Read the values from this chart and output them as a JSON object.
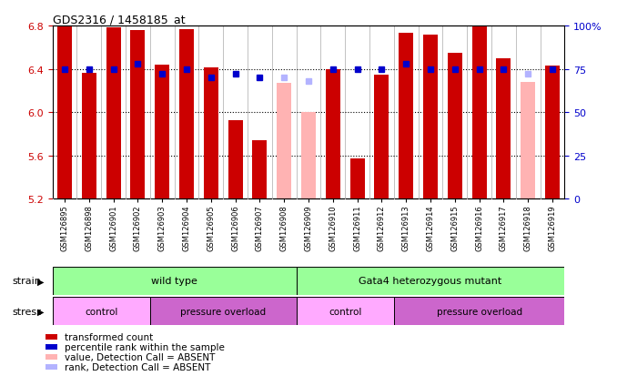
{
  "title": "GDS2316 / 1458185_at",
  "samples": [
    "GSM126895",
    "GSM126898",
    "GSM126901",
    "GSM126902",
    "GSM126903",
    "GSM126904",
    "GSM126905",
    "GSM126906",
    "GSM126907",
    "GSM126908",
    "GSM126909",
    "GSM126910",
    "GSM126911",
    "GSM126912",
    "GSM126913",
    "GSM126914",
    "GSM126915",
    "GSM126916",
    "GSM126917",
    "GSM126918",
    "GSM126919"
  ],
  "bar_values": [
    6.8,
    6.36,
    6.78,
    6.76,
    6.44,
    6.77,
    6.41,
    5.93,
    5.74,
    null,
    null,
    6.4,
    5.57,
    6.35,
    6.73,
    6.72,
    6.55,
    6.8,
    6.5,
    null,
    6.43
  ],
  "absent_values": [
    null,
    null,
    null,
    null,
    null,
    null,
    null,
    null,
    null,
    6.27,
    6.0,
    null,
    null,
    null,
    null,
    null,
    null,
    null,
    null,
    6.28,
    null
  ],
  "rank_values": [
    75,
    75,
    75,
    78,
    72,
    75,
    70,
    72,
    70,
    null,
    null,
    75,
    75,
    75,
    78,
    75,
    75,
    75,
    75,
    null,
    75
  ],
  "absent_rank_values": [
    null,
    null,
    null,
    null,
    null,
    null,
    null,
    null,
    null,
    70,
    68,
    null,
    null,
    null,
    null,
    null,
    null,
    null,
    null,
    72,
    null
  ],
  "ylim_left": [
    5.2,
    6.8
  ],
  "ylim_right": [
    0,
    100
  ],
  "yticks_left": [
    5.2,
    5.6,
    6.0,
    6.4,
    6.8
  ],
  "yticks_right": [
    0,
    25,
    50,
    75,
    100
  ],
  "bar_color": "#cc0000",
  "absent_bar_color": "#ffb3b3",
  "rank_color": "#0000cc",
  "absent_rank_color": "#b3b3ff",
  "legend_items": [
    {
      "label": "transformed count",
      "color": "#cc0000"
    },
    {
      "label": "percentile rank within the sample",
      "color": "#0000cc"
    },
    {
      "label": "value, Detection Call = ABSENT",
      "color": "#ffb3b3"
    },
    {
      "label": "rank, Detection Call = ABSENT",
      "color": "#b3b3ff"
    }
  ],
  "bg_color": "#ffffff",
  "tick_label_color_left": "#cc0000",
  "tick_label_color_right": "#0000cc",
  "strain_wt_color": "#99ff99",
  "strain_mut_color": "#99ff99",
  "stress_control_color": "#ffaaff",
  "stress_overload_color": "#cc66cc",
  "xtick_bg_color": "#cccccc"
}
